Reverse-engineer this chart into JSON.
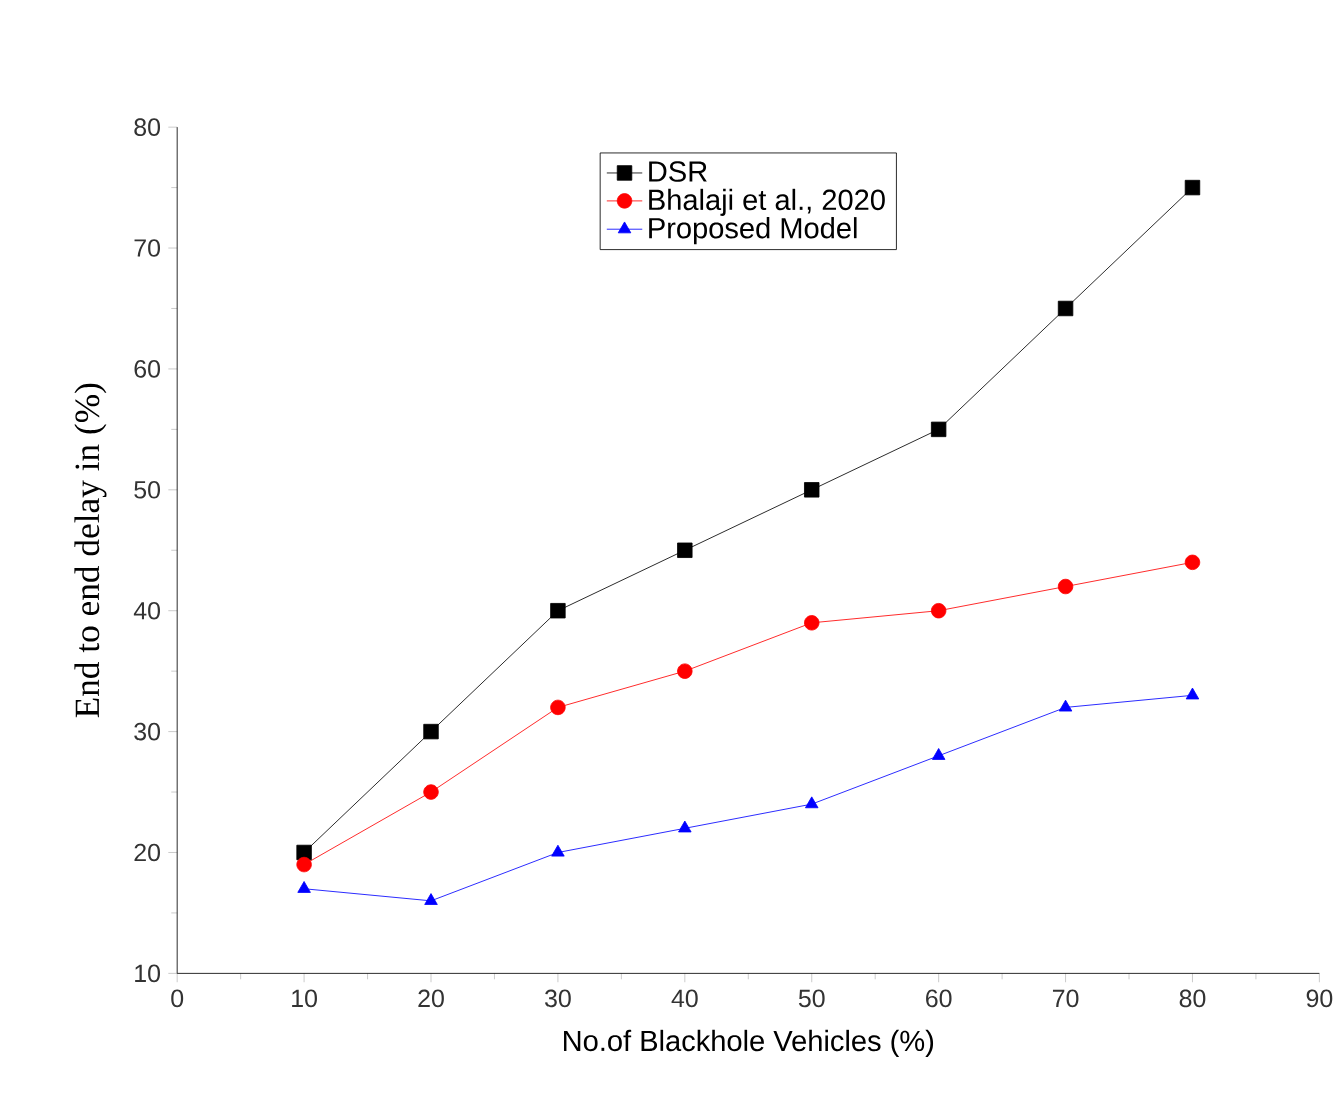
{
  "chart_data": {
    "type": "line",
    "xlabel": "No.of Blackhole Vehicles (%)",
    "ylabel": "End to end delay in (%)",
    "x": [
      10,
      20,
      30,
      40,
      50,
      60,
      70,
      80
    ],
    "series": [
      {
        "name": "DSR",
        "color": "#000000",
        "marker": "square",
        "values": [
          20,
          30,
          40,
          45,
          50,
          55,
          65,
          75
        ]
      },
      {
        "name": "Bhalaji et al., 2020",
        "color": "#ff0000",
        "marker": "circle",
        "values": [
          19,
          25,
          32,
          35,
          39,
          40,
          42,
          44
        ]
      },
      {
        "name": "Proposed Model",
        "color": "#0000ff",
        "marker": "triangle",
        "values": [
          17,
          16,
          20,
          22,
          24,
          28,
          32,
          33
        ]
      }
    ],
    "xlim": [
      0,
      90
    ],
    "xticks": [
      0,
      10,
      20,
      30,
      40,
      50,
      60,
      70,
      80,
      90
    ],
    "ylim": [
      10,
      80
    ],
    "yticks": [
      10,
      20,
      30,
      40,
      50,
      60,
      70,
      80
    ],
    "legend": "top",
    "grid": false,
    "line_style": "solid"
  }
}
